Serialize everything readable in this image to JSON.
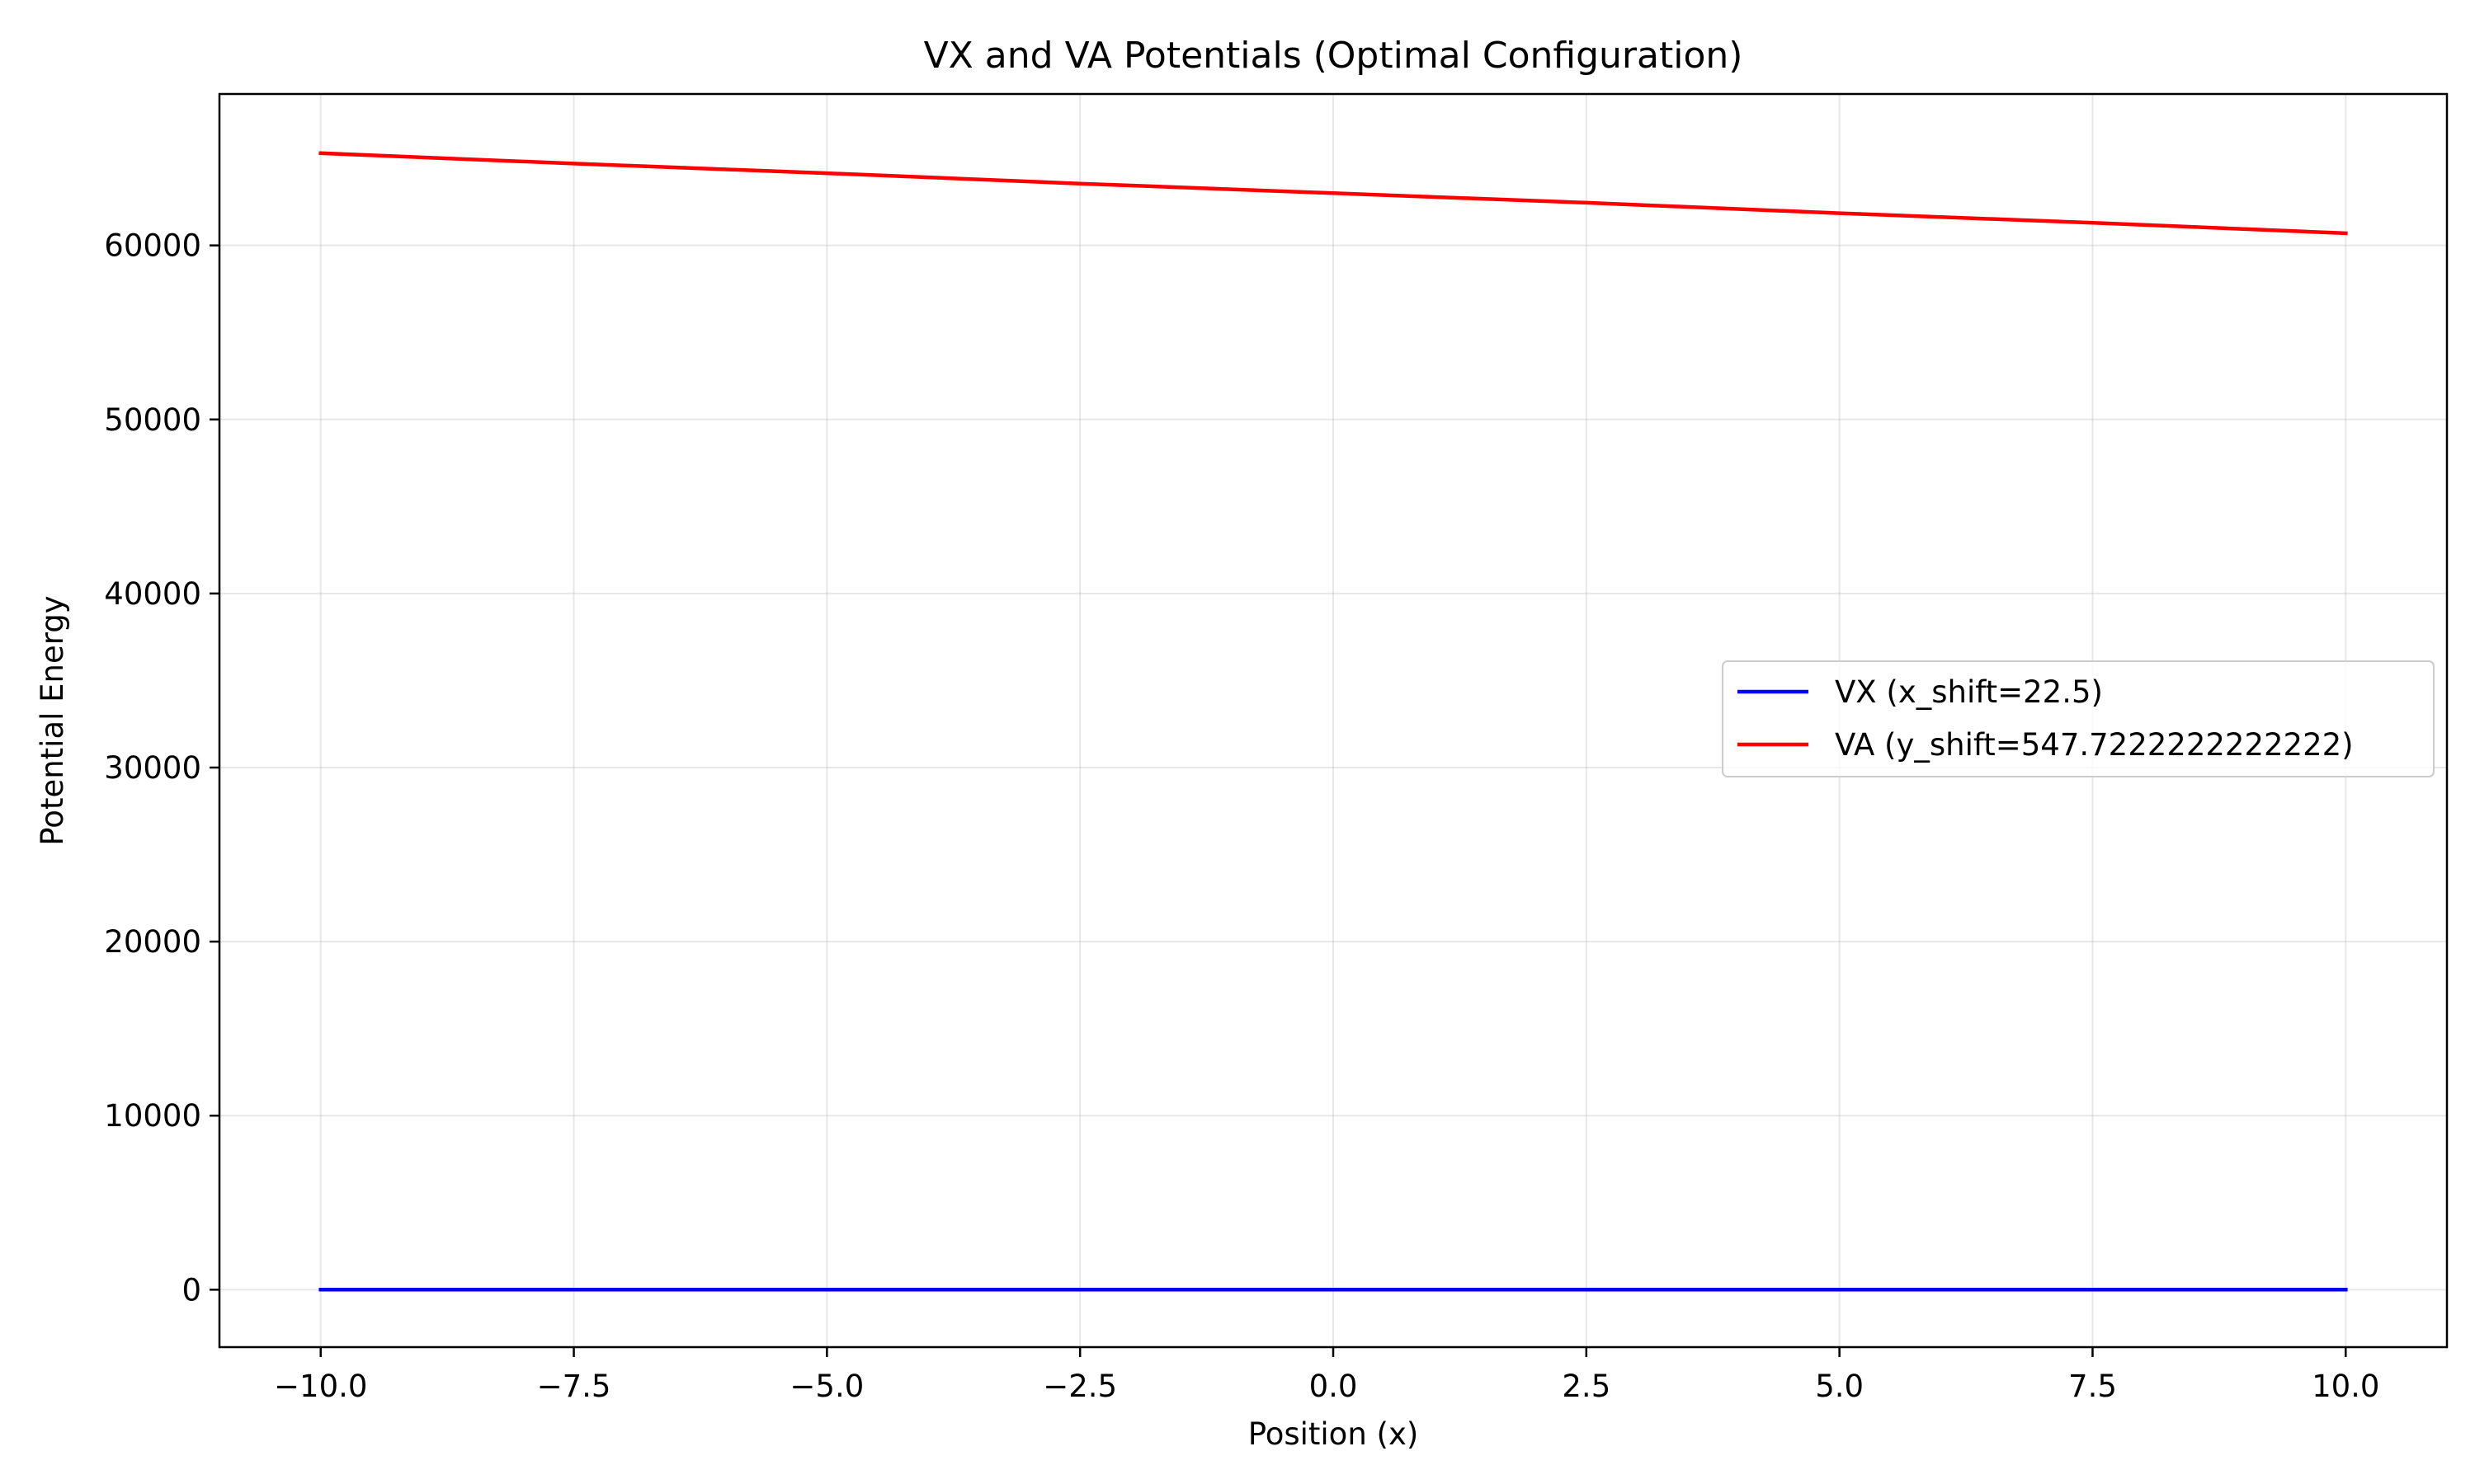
{
  "chart_data": {
    "type": "line",
    "title": "VX and VA Potentials (Optimal Configuration)",
    "xlabel": "Position (x)",
    "ylabel": "Potential Energy",
    "xlim": [
      -11,
      11
    ],
    "ylim": [
      -3300,
      68700
    ],
    "x_ticks": [
      -10,
      -7.5,
      -5,
      -2.5,
      0,
      2.5,
      5,
      7.5,
      10
    ],
    "x_tick_labels": [
      "−10.0",
      "−7.5",
      "−5.0",
      "−2.5",
      "0.0",
      "2.5",
      "5.0",
      "7.5",
      "10.0"
    ],
    "y_ticks": [
      0,
      10000,
      20000,
      30000,
      40000,
      50000,
      60000
    ],
    "y_tick_labels": [
      "0",
      "10000",
      "20000",
      "30000",
      "40000",
      "50000",
      "60000"
    ],
    "grid": true,
    "legend_position": "center-right",
    "series": [
      {
        "name": "VX (x_shift=22.5)",
        "color": "#0000ff",
        "x": [
          -10,
          10
        ],
        "y": [
          0,
          0
        ]
      },
      {
        "name": "VA (y_shift=547.7222222222222)",
        "color": "#ff0000",
        "x": [
          -10,
          -7.5,
          -5,
          -2.5,
          0,
          2.5,
          5,
          7.5,
          10
        ],
        "y": [
          65300,
          64700,
          64150,
          63550,
          63000,
          62450,
          61850,
          61300,
          60700
        ]
      }
    ]
  }
}
